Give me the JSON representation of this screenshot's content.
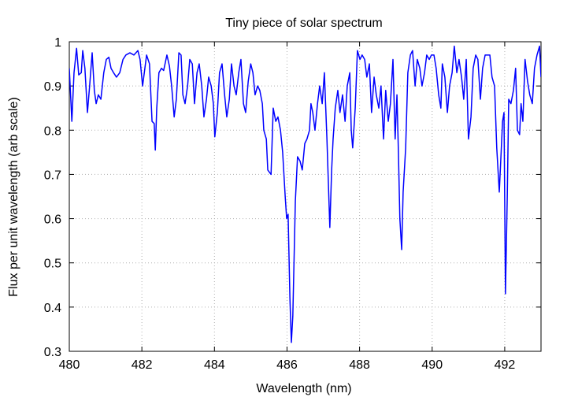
{
  "chart_data": {
    "type": "line",
    "title": "Tiny piece of solar spectrum",
    "xlabel": "Wavelength (nm)",
    "ylabel": "Flux per unit wavelength (arb scale)",
    "xlim": [
      480,
      493
    ],
    "xticks": [
      480,
      482,
      484,
      486,
      488,
      490,
      492
    ],
    "ylim": [
      0.3,
      1
    ],
    "yticks": [
      0.3,
      0.4,
      0.5,
      0.6,
      0.7,
      0.8,
      0.9,
      1
    ],
    "grid": true,
    "color": "#0000ff",
    "x": [
      480.0,
      480.07,
      480.13,
      480.2,
      480.26,
      480.33,
      480.37,
      480.43,
      480.5,
      480.56,
      480.63,
      480.69,
      480.74,
      480.8,
      480.87,
      480.95,
      481.02,
      481.09,
      481.15,
      481.22,
      481.3,
      481.39,
      481.48,
      481.56,
      481.67,
      481.78,
      481.89,
      481.95,
      482.02,
      482.13,
      482.21,
      482.28,
      482.34,
      482.37,
      482.41,
      482.47,
      482.54,
      482.6,
      482.69,
      482.76,
      482.82,
      482.89,
      482.95,
      483.02,
      483.08,
      483.13,
      483.19,
      483.26,
      483.32,
      483.39,
      483.45,
      483.52,
      483.58,
      483.65,
      483.71,
      483.78,
      483.84,
      483.91,
      483.97,
      484.01,
      484.08,
      484.14,
      484.21,
      484.28,
      484.34,
      484.41,
      484.47,
      484.54,
      484.6,
      484.67,
      484.73,
      484.8,
      484.86,
      484.93,
      485.0,
      485.06,
      485.12,
      485.19,
      485.25,
      485.32,
      485.36,
      485.43,
      485.47,
      485.56,
      485.62,
      485.69,
      485.75,
      485.82,
      485.88,
      485.95,
      485.99,
      486.03,
      486.08,
      486.12,
      486.16,
      486.23,
      486.29,
      486.36,
      486.42,
      486.49,
      486.55,
      486.62,
      486.66,
      486.71,
      486.77,
      486.84,
      486.9,
      486.97,
      487.03,
      487.1,
      487.14,
      487.18,
      487.23,
      487.27,
      487.33,
      487.4,
      487.46,
      487.53,
      487.6,
      487.66,
      487.73,
      487.77,
      487.81,
      487.88,
      487.94,
      488.01,
      488.07,
      488.14,
      488.2,
      488.27,
      488.33,
      488.4,
      488.46,
      488.53,
      488.59,
      488.66,
      488.72,
      488.79,
      488.85,
      488.92,
      488.98,
      489.03,
      489.07,
      489.11,
      489.16,
      489.2,
      489.27,
      489.33,
      489.4,
      489.46,
      489.53,
      489.59,
      489.66,
      489.72,
      489.79,
      489.85,
      489.92,
      489.98,
      490.05,
      490.11,
      490.18,
      490.24,
      490.28,
      490.35,
      490.42,
      490.48,
      490.55,
      490.61,
      490.68,
      490.74,
      490.81,
      490.87,
      490.94,
      491.0,
      491.07,
      491.13,
      491.2,
      491.26,
      491.33,
      491.39,
      491.46,
      491.52,
      491.59,
      491.65,
      491.72,
      491.78,
      491.85,
      491.89,
      491.94,
      491.98,
      492.02,
      492.07,
      492.11,
      492.17,
      492.24,
      492.3,
      492.35,
      492.41,
      492.45,
      492.5,
      492.56,
      492.63,
      492.69,
      492.76,
      492.82,
      492.89,
      492.96,
      493.0
    ],
    "values": [
      0.94,
      0.82,
      0.93,
      0.985,
      0.925,
      0.93,
      0.98,
      0.94,
      0.84,
      0.9,
      0.975,
      0.89,
      0.86,
      0.88,
      0.87,
      0.93,
      0.96,
      0.965,
      0.94,
      0.93,
      0.92,
      0.93,
      0.96,
      0.97,
      0.975,
      0.97,
      0.98,
      0.96,
      0.9,
      0.97,
      0.95,
      0.82,
      0.815,
      0.755,
      0.85,
      0.93,
      0.94,
      0.935,
      0.97,
      0.945,
      0.9,
      0.83,
      0.87,
      0.975,
      0.97,
      0.88,
      0.86,
      0.9,
      0.96,
      0.95,
      0.86,
      0.93,
      0.95,
      0.9,
      0.83,
      0.87,
      0.92,
      0.9,
      0.86,
      0.785,
      0.84,
      0.93,
      0.95,
      0.88,
      0.83,
      0.87,
      0.95,
      0.9,
      0.88,
      0.93,
      0.96,
      0.86,
      0.84,
      0.91,
      0.95,
      0.93,
      0.88,
      0.9,
      0.89,
      0.86,
      0.8,
      0.78,
      0.71,
      0.7,
      0.85,
      0.82,
      0.83,
      0.8,
      0.75,
      0.65,
      0.6,
      0.61,
      0.42,
      0.32,
      0.38,
      0.64,
      0.74,
      0.73,
      0.71,
      0.77,
      0.78,
      0.8,
      0.86,
      0.84,
      0.8,
      0.86,
      0.9,
      0.86,
      0.93,
      0.78,
      0.68,
      0.58,
      0.71,
      0.78,
      0.85,
      0.89,
      0.84,
      0.88,
      0.82,
      0.9,
      0.93,
      0.8,
      0.76,
      0.85,
      0.98,
      0.96,
      0.97,
      0.96,
      0.92,
      0.95,
      0.84,
      0.92,
      0.88,
      0.85,
      0.9,
      0.78,
      0.89,
      0.82,
      0.86,
      0.96,
      0.78,
      0.88,
      0.75,
      0.6,
      0.53,
      0.66,
      0.76,
      0.93,
      0.97,
      0.98,
      0.9,
      0.96,
      0.94,
      0.9,
      0.93,
      0.97,
      0.96,
      0.97,
      0.97,
      0.94,
      0.88,
      0.85,
      0.95,
      0.92,
      0.84,
      0.9,
      0.93,
      0.99,
      0.93,
      0.96,
      0.92,
      0.87,
      0.96,
      0.78,
      0.83,
      0.94,
      0.97,
      0.96,
      0.87,
      0.94,
      0.97,
      0.97,
      0.97,
      0.92,
      0.9,
      0.76,
      0.66,
      0.73,
      0.82,
      0.84,
      0.43,
      0.65,
      0.87,
      0.86,
      0.89,
      0.94,
      0.8,
      0.79,
      0.86,
      0.82,
      0.96,
      0.91,
      0.88,
      0.86,
      0.94,
      0.97,
      0.99,
      0.92
    ]
  }
}
